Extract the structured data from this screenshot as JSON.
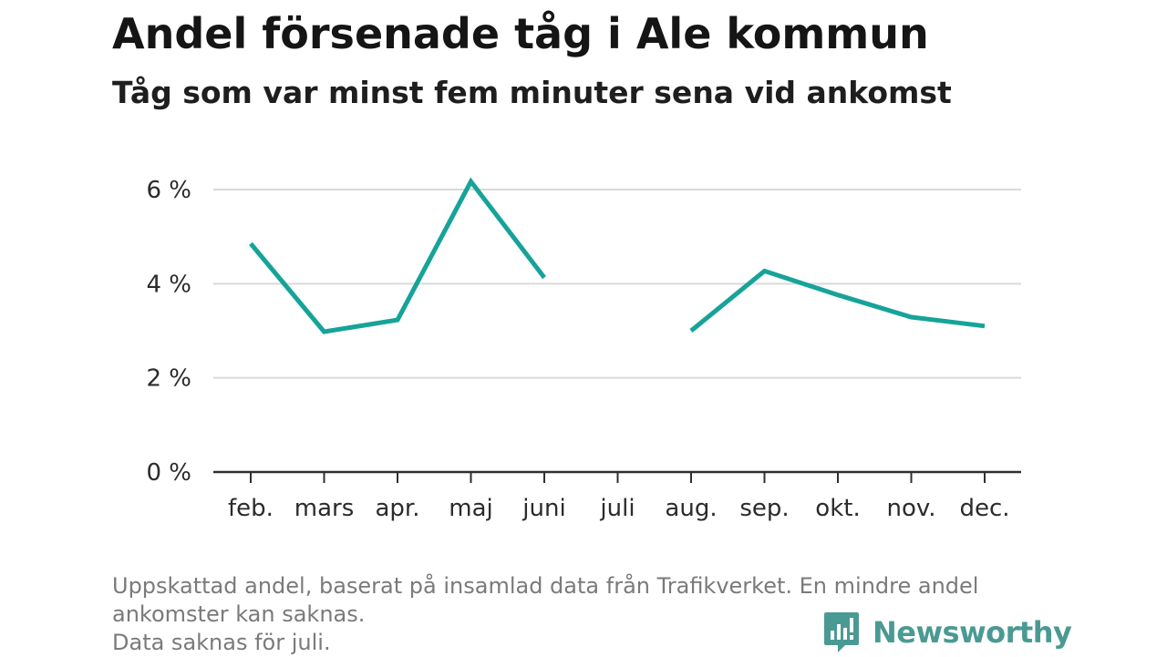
{
  "title": "Andel försenade tåg i Ale kommun",
  "subtitle": "Tåg som var minst fem minuter sena vid ankomst",
  "footnote": {
    "line1": "Uppskattad andel, baserat på insamlad data från Trafikverket. En mindre andel",
    "line2": "ankomster kan saknas.",
    "line3": "Data saknas för juli."
  },
  "brand": {
    "name": "Newsworthy",
    "icon": "newsworthy-logo-icon",
    "color": "#4a9a93"
  },
  "chart_data": {
    "type": "line",
    "categories": [
      "feb.",
      "mars",
      "apr.",
      "maj",
      "juni",
      "juli",
      "aug.",
      "sep.",
      "okt.",
      "nov.",
      "dec."
    ],
    "series": [
      {
        "values": [
          4.85,
          2.98,
          3.23,
          6.17,
          4.13,
          null,
          3.0,
          4.27,
          3.76,
          3.29,
          3.1
        ],
        "color": "#16a399"
      }
    ],
    "yticks": [
      0,
      2,
      4,
      6
    ],
    "ytick_labels": [
      "0 %",
      "2 %",
      "4 %",
      "6 %"
    ],
    "ylim": [
      0,
      6.2
    ],
    "xlabel": "",
    "ylabel": "",
    "grid": true
  }
}
